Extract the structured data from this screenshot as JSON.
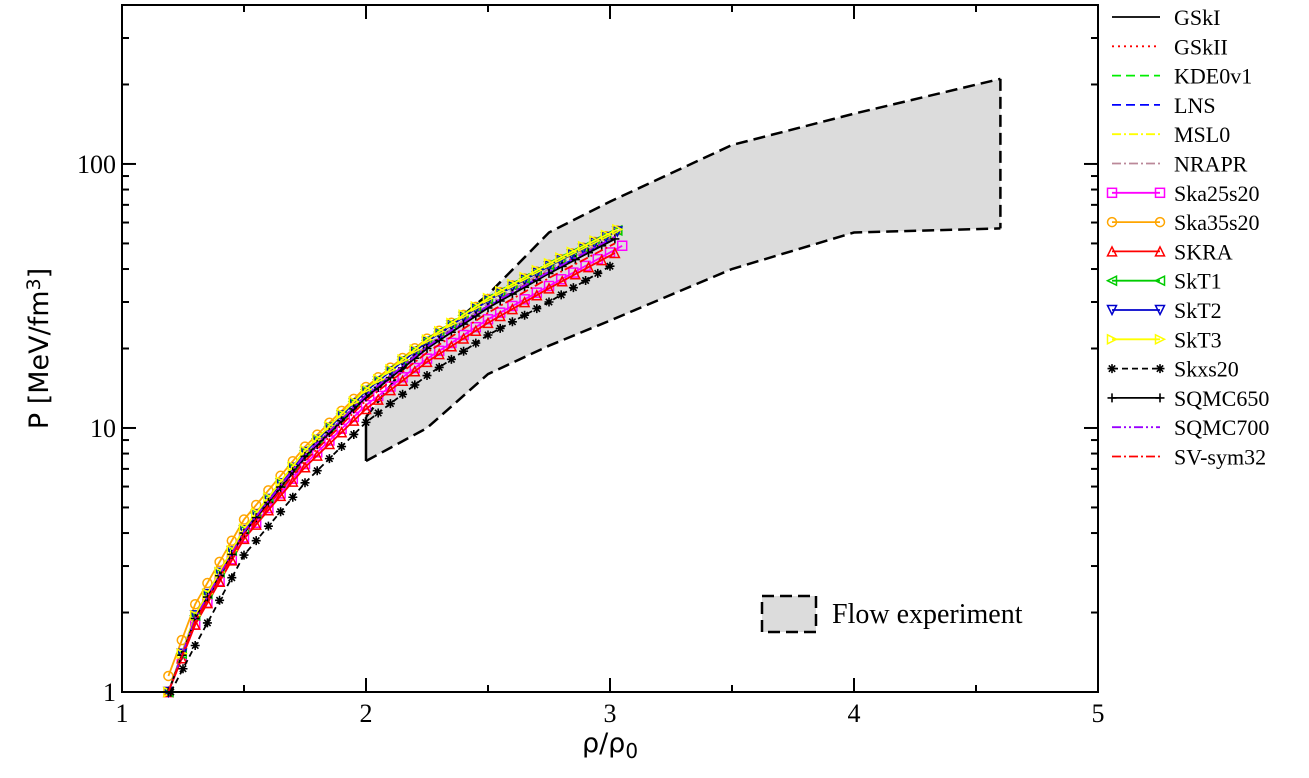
{
  "chart_data": {
    "type": "line",
    "xlabel": "ρ/ρ",
    "xlabel_sub": "0",
    "ylabel": "P [MeV/fm",
    "ylabel_sup": "3",
    "ylabel_end": "]",
    "xlim": [
      1,
      5
    ],
    "ylim": [
      1,
      400
    ],
    "yscale": "log",
    "x_ticks": [
      "1",
      "2",
      "3",
      "4",
      "5"
    ],
    "y_ticks": [
      "1",
      "10",
      "100"
    ],
    "grid": false,
    "legend_position": "outside-right",
    "flow_experiment": {
      "label": "Flow experiment",
      "upper": [
        [
          2.0,
          11.0
        ],
        [
          2.2,
          19.0
        ],
        [
          2.5,
          32.0
        ],
        [
          2.75,
          55.0
        ],
        [
          3.0,
          72.0
        ],
        [
          3.5,
          118.0
        ],
        [
          4.0,
          155.0
        ],
        [
          4.6,
          210.0
        ]
      ],
      "lower": [
        [
          2.0,
          7.5
        ],
        [
          2.25,
          10.0
        ],
        [
          2.5,
          16.0
        ],
        [
          2.75,
          20.5
        ],
        [
          3.0,
          25.5
        ],
        [
          3.5,
          40.0
        ],
        [
          4.0,
          55.0
        ],
        [
          4.6,
          57.0
        ]
      ],
      "fill": "#dcdcdc"
    },
    "series": [
      {
        "name": "GSkI",
        "color": "#000000",
        "dash": "",
        "marker": "none",
        "x": [
          1.19,
          1.3,
          1.5,
          1.75,
          2.0,
          2.25,
          2.5,
          2.75,
          3.02
        ],
        "y": [
          1.0,
          1.85,
          4.0,
          7.7,
          13.0,
          20.0,
          28.5,
          38.5,
          52.0
        ]
      },
      {
        "name": "GSkII",
        "color": "#ff0000",
        "dash": "2,4",
        "marker": "none",
        "x": [
          1.19,
          1.3,
          1.5,
          1.75,
          2.0,
          2.25,
          2.5,
          2.75,
          3.02
        ],
        "y": [
          1.0,
          1.9,
          4.05,
          7.9,
          13.3,
          20.4,
          29.0,
          39.5,
          53.0
        ]
      },
      {
        "name": "KDE0v1",
        "color": "#00ee00",
        "dash": "9,5",
        "marker": "none",
        "x": [
          1.19,
          1.3,
          1.5,
          1.75,
          2.0,
          2.25,
          2.5,
          2.75,
          3.02
        ],
        "y": [
          1.0,
          1.95,
          4.1,
          8.1,
          13.8,
          21.3,
          30.5,
          41.0,
          55.0
        ]
      },
      {
        "name": "LNS",
        "color": "#0000ff",
        "dash": "9,5",
        "marker": "none",
        "x": [
          1.19,
          1.3,
          1.5,
          1.75,
          2.0,
          2.25,
          2.5,
          2.75,
          3.02
        ],
        "y": [
          1.0,
          1.9,
          4.0,
          7.8,
          13.2,
          20.2,
          28.8,
          39.0,
          52.5
        ]
      },
      {
        "name": "MSL0",
        "color": "#ffff00",
        "dash": "9,3,2,3",
        "marker": "none",
        "x": [
          1.19,
          1.3,
          1.5,
          1.75,
          2.0,
          2.25,
          2.5,
          2.75,
          3.02
        ],
        "y": [
          1.0,
          1.95,
          4.15,
          8.2,
          14.0,
          21.6,
          31.0,
          42.0,
          56.0
        ]
      },
      {
        "name": "NRAPR",
        "color": "#bb8899",
        "dash": "9,3,2,3",
        "marker": "none",
        "x": [
          1.19,
          1.3,
          1.5,
          1.75,
          2.0,
          2.25,
          2.5,
          2.75,
          3.02
        ],
        "y": [
          1.0,
          1.9,
          4.05,
          7.9,
          13.4,
          20.6,
          29.5,
          40.0,
          53.5
        ]
      },
      {
        "name": "Ska25s20",
        "color": "#ff00ff",
        "dash": "",
        "marker": "square",
        "x": [
          1.19,
          1.3,
          1.5,
          1.75,
          2.0,
          2.25,
          2.5,
          2.75,
          3.05
        ],
        "y": [
          1.0,
          1.8,
          3.85,
          7.3,
          12.2,
          18.3,
          25.8,
          34.5,
          49.0
        ]
      },
      {
        "name": "Ska35s20",
        "color": "#ffa500",
        "dash": "",
        "marker": "circle",
        "x": [
          1.19,
          1.3,
          1.5,
          1.75,
          2.0,
          2.25,
          2.5,
          2.75,
          3.03
        ],
        "y": [
          1.15,
          2.15,
          4.5,
          8.5,
          14.3,
          21.8,
          30.8,
          41.5,
          56.0
        ]
      },
      {
        "name": "SKRA",
        "color": "#ff0000",
        "dash": "",
        "marker": "triangle-up",
        "x": [
          1.19,
          1.3,
          1.5,
          1.75,
          2.0,
          2.25,
          2.5,
          2.75,
          3.02
        ],
        "y": [
          1.0,
          1.8,
          3.8,
          7.1,
          11.8,
          17.8,
          25.0,
          33.8,
          46.0
        ]
      },
      {
        "name": "SkT1",
        "color": "#00cc00",
        "dash": "",
        "marker": "triangle-left",
        "x": [
          1.19,
          1.3,
          1.5,
          1.75,
          2.0,
          2.25,
          2.5,
          2.75,
          3.03
        ],
        "y": [
          1.0,
          1.95,
          4.15,
          8.2,
          14.0,
          21.5,
          30.8,
          41.5,
          56.0
        ]
      },
      {
        "name": "SkT2",
        "color": "#0000cc",
        "dash": "",
        "marker": "triangle-down",
        "x": [
          1.19,
          1.3,
          1.5,
          1.75,
          2.0,
          2.25,
          2.5,
          2.75,
          3.03
        ],
        "y": [
          1.0,
          1.95,
          4.1,
          8.1,
          13.8,
          21.2,
          30.4,
          41.0,
          55.5
        ]
      },
      {
        "name": "SkT3",
        "color": "#ffff00",
        "dash": "",
        "marker": "triangle-right",
        "x": [
          1.19,
          1.3,
          1.5,
          1.75,
          2.0,
          2.25,
          2.5,
          2.75,
          3.03
        ],
        "y": [
          1.0,
          1.95,
          4.15,
          8.2,
          14.0,
          21.6,
          31.0,
          42.0,
          56.5
        ]
      },
      {
        "name": "Skxs20",
        "color": "#000000",
        "dash": "6,4",
        "marker": "star",
        "x": [
          1.2,
          1.3,
          1.5,
          1.75,
          2.0,
          2.25,
          2.5,
          2.75,
          3.0
        ],
        "y": [
          1.0,
          1.5,
          3.3,
          6.2,
          10.5,
          15.8,
          22.5,
          30.0,
          41.0
        ]
      },
      {
        "name": "SQMC650",
        "color": "#000000",
        "dash": "",
        "marker": "plus",
        "x": [
          1.19,
          1.3,
          1.5,
          1.75,
          2.0,
          2.25,
          2.5,
          2.75,
          3.02
        ],
        "y": [
          1.0,
          1.9,
          4.0,
          7.8,
          13.1,
          20.0,
          28.5,
          38.5,
          52.0
        ]
      },
      {
        "name": "SQMC700",
        "color": "#9900ff",
        "dash": "9,3,2,3,2,3",
        "marker": "none",
        "x": [
          1.19,
          1.3,
          1.5,
          1.75,
          2.0,
          2.25,
          2.5,
          2.75,
          3.02
        ],
        "y": [
          1.0,
          1.9,
          4.05,
          7.9,
          13.3,
          20.3,
          29.0,
          39.0,
          53.0
        ]
      },
      {
        "name": "SV-sym32",
        "color": "#ff0000",
        "dash": "9,3,2,3",
        "marker": "none",
        "x": [
          1.19,
          1.3,
          1.5,
          1.75,
          2.0,
          2.25,
          2.5,
          2.75,
          3.02
        ],
        "y": [
          1.0,
          1.85,
          3.95,
          7.5,
          12.7,
          19.3,
          27.3,
          37.0,
          50.0
        ]
      }
    ]
  }
}
